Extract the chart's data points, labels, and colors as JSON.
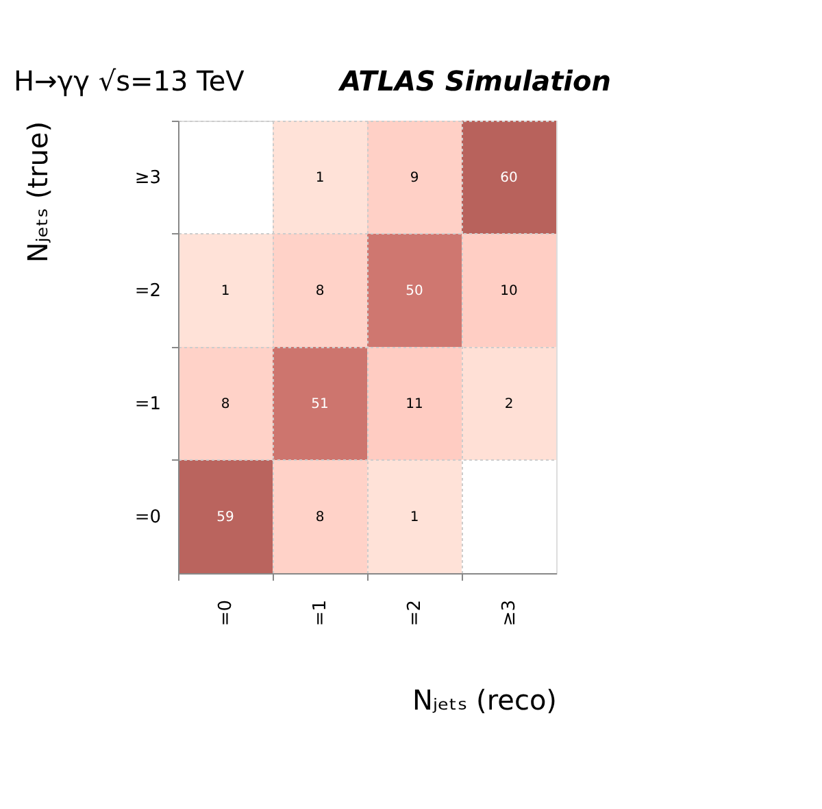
{
  "chart_data": {
    "type": "heatmap",
    "annotations": [
      "H→γγ   √s=13 TeV",
      "ATLAS Simulation"
    ],
    "xlabel": "Nⱼₑₜₛ (reco)",
    "ylabel": "Nⱼₑₜₛ (true)",
    "categories": [
      "=0",
      "=1",
      "=2",
      "≥3"
    ],
    "y_categories": [
      "≥3",
      "=2",
      "=1",
      "=0"
    ],
    "cells": [
      [
        null,
        1,
        9,
        60
      ],
      [
        1,
        8,
        50,
        10
      ],
      [
        8,
        51,
        11,
        2
      ],
      [
        59,
        8,
        1,
        null
      ]
    ],
    "color": "#b8625c",
    "grid": true,
    "data_labels": true
  }
}
